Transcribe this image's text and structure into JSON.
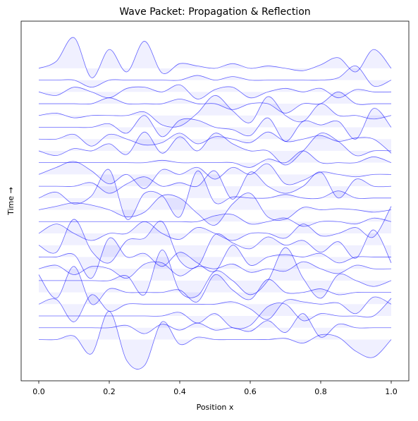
{
  "chart_data": {
    "type": "ridgeline",
    "title": "Wave Packet: Propagation & Reflection",
    "x_label": "Position x",
    "y_label": "Time →",
    "color": "#0000ff",
    "xlim": [
      -0.05,
      1.05
    ],
    "ylim": [
      -3.5,
      27
    ],
    "xticks": [
      {
        "value": 0,
        "label": "0.0"
      },
      0.2,
      0.4,
      0.6,
      0.8,
      {
        "value": 1,
        "label": "1.0"
      }
    ],
    "x": [
      0,
      0.05,
      0.1,
      0.15,
      0.2,
      0.25,
      0.3,
      0.35,
      0.4,
      0.45,
      0.5,
      0.55,
      0.6,
      0.65,
      0.7,
      0.75,
      0.8,
      0.85,
      0.9,
      0.95,
      1
    ],
    "series": [
      {
        "baseline": 0,
        "values": [
          0,
          0,
          0.3,
          -1.2,
          2.4,
          -1.8,
          -2.2,
          1.5,
          -0.4,
          0.2,
          0,
          0,
          0,
          0,
          0.1,
          -0.3,
          0.4,
          0.2,
          -1.0,
          -1.5,
          0
        ]
      },
      {
        "baseline": 1,
        "values": [
          0,
          0,
          0,
          0,
          0,
          0.2,
          -0.5,
          0.3,
          -0.2,
          0.4,
          -0.2,
          0,
          -0.3,
          0.6,
          -0.4,
          1.2,
          -0.8,
          0.3,
          0,
          0,
          0
        ]
      },
      {
        "baseline": 2,
        "values": [
          0,
          0,
          0,
          0,
          0,
          0,
          0,
          0,
          0.3,
          -0.6,
          0.2,
          -1.0,
          -0.8,
          0.8,
          1.0,
          -0.4,
          0.2,
          0,
          0,
          0,
          1.5
        ]
      },
      {
        "baseline": 3,
        "values": [
          0,
          0.4,
          -1.5,
          0.8,
          -0.6,
          0,
          0,
          0,
          0,
          0,
          0,
          0.2,
          -0.4,
          -1.3,
          0.3,
          0.2,
          0,
          0.1,
          -0.8,
          0.6,
          0
        ]
      },
      {
        "baseline": 4,
        "values": [
          1.5,
          -0.5,
          2.2,
          -1.0,
          0.3,
          0,
          0,
          0,
          0.2,
          -0.8,
          1.5,
          0.2,
          -0.6,
          1.1,
          0,
          0,
          0.3,
          -0.2,
          0,
          0,
          0
        ]
      },
      {
        "baseline": 5,
        "values": [
          0,
          0,
          0,
          0,
          0,
          0.4,
          -1.2,
          2.6,
          -0.9,
          -1.3,
          0.8,
          0,
          -1.2,
          0,
          2.8,
          0.2,
          -1.5,
          0.5,
          0,
          -0.5,
          0
        ]
      },
      {
        "baseline": 6,
        "values": [
          0,
          0.3,
          -0.5,
          0.2,
          0,
          -0.8,
          0.4,
          0.5,
          -0.6,
          0.2,
          0,
          0.4,
          -0.3,
          0,
          -0.2,
          0.6,
          0,
          -0.4,
          0.3,
          0,
          0
        ]
      },
      {
        "baseline": 7,
        "values": [
          0,
          0,
          0.2,
          -1.8,
          1.6,
          0,
          0.3,
          -0.8,
          0.4,
          -0.5,
          -1.2,
          1.0,
          -0.7,
          0,
          0.2,
          0,
          0.3,
          -0.5,
          0,
          0,
          0
        ]
      },
      {
        "baseline": 8,
        "values": [
          0,
          -0.6,
          2.2,
          -0.5,
          -1.5,
          0.4,
          0.6,
          2.0,
          -1.3,
          -1.8,
          0.9,
          0.2,
          -0.3,
          0.7,
          0,
          0.4,
          -0.6,
          0.3,
          -1.1,
          1.3,
          -1.5
        ]
      },
      {
        "baseline": 9,
        "values": [
          0,
          0.8,
          0,
          -0.6,
          0,
          0,
          1.0,
          0,
          -0.5,
          0.5,
          0,
          -0.6,
          0,
          0,
          -0.4,
          0.8,
          -0.2,
          0,
          0.5,
          -0.3,
          2.3
        ]
      },
      {
        "baseline": 10,
        "values": [
          0,
          0,
          0,
          0,
          0,
          0,
          0,
          0,
          0,
          0,
          0.5,
          0.6,
          -0.2,
          0,
          0.3,
          -0.4,
          0,
          0,
          -0.2,
          0.3,
          0
        ]
      },
      {
        "baseline": 11,
        "values": [
          0,
          0.3,
          0.6,
          0.4,
          0,
          -0.6,
          -0.2,
          1.2,
          1.0,
          -0.3,
          -1.3,
          0.5,
          1.4,
          -0.6,
          -0.8,
          0.2,
          0,
          0.1,
          0,
          -0.2,
          0
        ]
      },
      {
        "baseline": 12,
        "values": [
          0,
          0.5,
          -0.5,
          0.2,
          2.4,
          -1.8,
          0.4,
          0.2,
          -1.6,
          2.3,
          -0.4,
          0.1,
          0,
          0,
          0.3,
          0,
          0,
          0.6,
          0,
          0,
          0
        ]
      },
      {
        "baseline": 13,
        "values": [
          0,
          0,
          0,
          0.3,
          -0.6,
          0.2,
          0.8,
          0,
          0.3,
          0,
          1.3,
          -1.1,
          1.2,
          0,
          -0.6,
          0,
          1.2,
          -1.0,
          0.6,
          0,
          0
        ]
      },
      {
        "baseline": 14,
        "values": [
          0,
          0.6,
          1.1,
          0.3,
          -0.8,
          0,
          -1.2,
          0.4,
          0,
          0.6,
          -0.4,
          0.6,
          0,
          0.9,
          -0.8,
          -0.5,
          0.2,
          0,
          -0.2,
          0,
          0
        ]
      },
      {
        "baseline": 15,
        "values": [
          0,
          0,
          0,
          0,
          0,
          0,
          0,
          0.2,
          0,
          0,
          0,
          0,
          -0.4,
          0.3,
          0,
          1.0,
          0,
          0,
          0,
          0.5,
          0
        ]
      },
      {
        "baseline": 16,
        "values": [
          0,
          -0.4,
          0.2,
          0,
          0.6,
          -0.3,
          1.6,
          -0.2,
          1.2,
          0,
          1.5,
          0.6,
          0,
          0,
          -1.2,
          0,
          1.5,
          0.8,
          -0.4,
          0,
          0
        ]
      },
      {
        "baseline": 17,
        "values": [
          0,
          0,
          0.4,
          -0.6,
          0.4,
          0,
          -0.5,
          -0.3,
          0.5,
          -0.4,
          0.2,
          0,
          -0.3,
          0.6,
          -0.2,
          0,
          0.3,
          -0.2,
          0.1,
          0,
          -1.2
        ]
      },
      {
        "baseline": 18,
        "values": [
          0,
          0,
          0,
          0,
          0.3,
          -0.5,
          1.0,
          -0.8,
          0.6,
          0.6,
          0,
          -0.2,
          -0.7,
          0.8,
          -1.2,
          0.5,
          0.2,
          0.5,
          -1.0,
          1.6,
          0
        ]
      },
      {
        "baseline": 19,
        "values": [
          0,
          0.2,
          -0.2,
          0,
          0,
          0,
          0.3,
          -0.8,
          -0.9,
          0.2,
          1.7,
          0.4,
          -0.6,
          1.6,
          0,
          -0.5,
          1.0,
          0,
          0,
          -0.3,
          0
        ]
      },
      {
        "baseline": 20,
        "values": [
          0,
          0,
          0,
          0,
          0.5,
          0,
          0,
          0,
          0.4,
          0,
          0,
          -0.5,
          0,
          0,
          -0.8,
          0,
          0,
          1.0,
          0,
          0,
          0
        ]
      },
      {
        "baseline": 21,
        "values": [
          0,
          -0.3,
          0.4,
          0,
          -0.5,
          0.3,
          0.4,
          0,
          0.6,
          -0.6,
          0.2,
          0.4,
          -0.5,
          0,
          0.3,
          0,
          0.3,
          -0.5,
          0.2,
          0,
          0
        ]
      },
      {
        "baseline": 22,
        "values": [
          0,
          0,
          0,
          -0.6,
          0,
          0,
          0,
          0,
          0,
          0.4,
          0,
          0.3,
          0,
          0,
          0,
          0,
          0,
          0.2,
          1.2,
          -0.5,
          0
        ]
      },
      {
        "baseline": 23,
        "values": [
          0,
          0.6,
          2.6,
          -0.8,
          1.6,
          -0.3,
          2.3,
          -0.4,
          0.4,
          0.2,
          0,
          0.4,
          0,
          0.2,
          0,
          -0.2,
          0.3,
          0.9,
          -0.3,
          1.6,
          0
        ]
      }
    ]
  }
}
